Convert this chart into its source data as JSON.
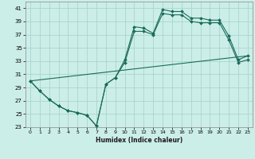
{
  "title": "",
  "xlabel": "Humidex (Indice chaleur)",
  "bg_color": "#cceee8",
  "grid_color": "#aad4ce",
  "line_color": "#1a6b5a",
  "xlim": [
    -0.5,
    23.5
  ],
  "ylim": [
    23,
    42
  ],
  "xticks": [
    0,
    1,
    2,
    3,
    4,
    5,
    6,
    7,
    8,
    9,
    10,
    11,
    12,
    13,
    14,
    15,
    16,
    17,
    18,
    19,
    20,
    21,
    22,
    23
  ],
  "yticks": [
    23,
    25,
    27,
    29,
    31,
    33,
    35,
    37,
    39,
    41
  ],
  "line1_x": [
    0,
    1,
    2,
    3,
    4,
    5,
    6,
    7,
    8,
    9,
    10,
    11,
    12,
    13,
    14,
    15,
    16,
    17,
    18,
    19,
    20,
    21,
    22,
    23
  ],
  "line1_y": [
    30.0,
    28.5,
    27.2,
    26.2,
    25.5,
    25.2,
    24.8,
    23.2,
    29.5,
    30.5,
    33.2,
    38.2,
    38.0,
    37.2,
    40.8,
    40.5,
    40.5,
    39.5,
    39.5,
    39.2,
    39.2,
    36.8,
    33.2,
    33.8
  ],
  "line2_x": [
    0,
    1,
    2,
    3,
    4,
    5,
    6,
    7,
    8,
    9,
    10,
    11,
    12,
    13,
    14,
    15,
    16,
    17,
    18,
    19,
    20,
    21,
    22,
    23
  ],
  "line2_y": [
    30.0,
    28.5,
    27.2,
    26.2,
    25.5,
    25.2,
    24.8,
    23.2,
    29.5,
    30.5,
    32.8,
    37.5,
    37.5,
    37.0,
    40.2,
    40.0,
    40.0,
    39.0,
    38.8,
    38.8,
    38.8,
    36.2,
    32.8,
    33.2
  ],
  "line3_x": [
    0,
    23
  ],
  "line3_y": [
    30.0,
    33.8
  ]
}
